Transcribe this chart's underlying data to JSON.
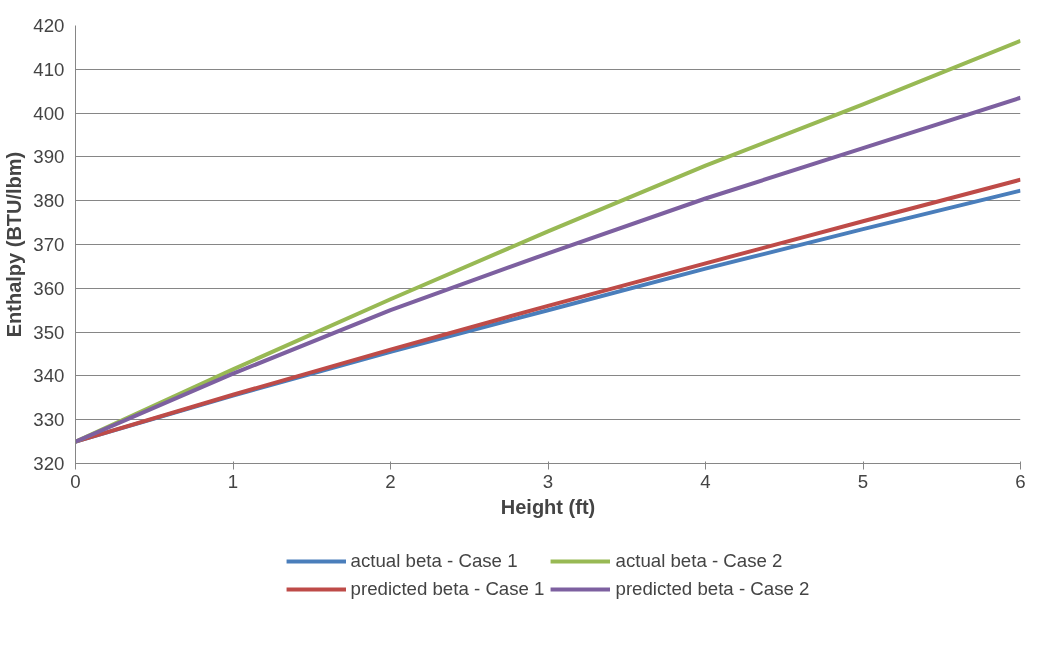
{
  "chart_data": {
    "type": "line",
    "xlabel": "Height (ft)",
    "ylabel": "Enthalpy (BTU/lbm)",
    "x": [
      0,
      1,
      2,
      3,
      4,
      5,
      6
    ],
    "series": [
      {
        "name": "actual beta - Case 1",
        "color": "#4a7ebb",
        "values": [
          325,
          335.5,
          345.5,
          355,
          364.5,
          373.5,
          382.3
        ]
      },
      {
        "name": "predicted beta - Case 1",
        "color": "#be4b48",
        "values": [
          325,
          335.7,
          346,
          356,
          365.7,
          375.3,
          384.8
        ]
      },
      {
        "name": "actual beta - Case 2",
        "color": "#98b954",
        "values": [
          325,
          341.5,
          357.5,
          373,
          388,
          402,
          416.5
        ]
      },
      {
        "name": "predicted beta - Case 2",
        "color": "#7d60a0",
        "values": [
          325,
          340.5,
          355,
          368,
          380.5,
          392,
          403.5
        ]
      }
    ],
    "xlim": [
      0,
      6
    ],
    "xticks": [
      0,
      1,
      2,
      3,
      4,
      5,
      6
    ],
    "ylim": [
      320,
      420
    ],
    "yticks": [
      320,
      330,
      340,
      350,
      360,
      370,
      380,
      390,
      400,
      410,
      420
    ],
    "grid": "y",
    "legend": "bottom",
    "marker": "none",
    "line_style": "solid"
  }
}
